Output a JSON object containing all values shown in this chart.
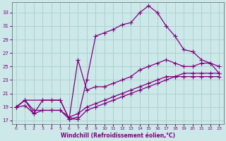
{
  "xlabel": "Windchill (Refroidissement éolien,°C)",
  "xlim": [
    -0.5,
    23.5
  ],
  "ylim": [
    16.5,
    34.5
  ],
  "yticks": [
    17,
    19,
    21,
    23,
    25,
    27,
    29,
    31,
    33
  ],
  "xticks": [
    0,
    1,
    2,
    3,
    4,
    5,
    6,
    7,
    8,
    9,
    10,
    11,
    12,
    13,
    14,
    15,
    16,
    17,
    18,
    19,
    20,
    21,
    22,
    23
  ],
  "bg_color": "#cce8e8",
  "grid_color": "#aacece",
  "line_color": "#800080",
  "line_width": 0.9,
  "marker": "+",
  "markersize": 4,
  "curve_lines": [
    {
      "x": [
        0,
        1,
        2,
        3,
        4,
        5,
        6,
        7,
        8,
        9,
        10,
        11,
        12,
        13,
        14,
        15,
        16,
        17,
        18,
        19,
        20,
        21,
        22,
        23
      ],
      "y": [
        19,
        20,
        18,
        20,
        20,
        20,
        17.2,
        17.5,
        23,
        29.5,
        30,
        30.5,
        31.2,
        31.5,
        33,
        34,
        33,
        31,
        29.5,
        27.5,
        27.2,
        26,
        25.5,
        25
      ]
    },
    {
      "x": [
        0,
        1,
        3,
        4,
        5,
        6,
        7,
        8,
        9,
        10,
        11,
        12,
        13,
        14,
        15,
        16,
        17,
        18,
        19,
        20,
        21,
        22,
        23
      ],
      "y": [
        19,
        20,
        20,
        20,
        20,
        17.2,
        26,
        21.5,
        22,
        22,
        22.5,
        23,
        23.5,
        24.5,
        25,
        25.5,
        26,
        25.5,
        25,
        25,
        25.5,
        25.5,
        24
      ]
    },
    {
      "x": [
        0,
        1,
        2,
        3,
        4,
        5,
        6,
        7,
        8,
        9,
        10,
        11,
        12,
        13,
        14,
        15,
        16,
        17,
        18,
        19,
        20,
        21,
        22,
        23
      ],
      "y": [
        19,
        20,
        18.5,
        18.5,
        18.5,
        18.5,
        17.5,
        18,
        19,
        19.5,
        20,
        20.5,
        21,
        21.5,
        22,
        22.5,
        23,
        23.5,
        23.5,
        23.5,
        23.5,
        23.5,
        23.5,
        23.5
      ]
    },
    {
      "x": [
        0,
        1,
        2,
        3,
        4,
        5,
        6,
        7,
        8,
        9,
        10,
        11,
        12,
        13,
        14,
        15,
        16,
        17,
        18,
        19,
        20,
        21,
        22,
        23
      ],
      "y": [
        19,
        19.2,
        18,
        18.5,
        18.5,
        18.5,
        17.2,
        17.2,
        18.5,
        19,
        19.5,
        20,
        20.5,
        21,
        21.5,
        22,
        22.5,
        23,
        23.5,
        24,
        24,
        24,
        24,
        24
      ]
    }
  ]
}
